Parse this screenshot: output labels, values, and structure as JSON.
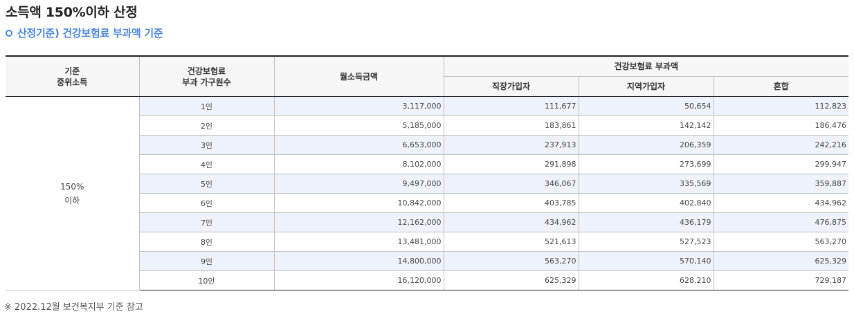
{
  "title": "소득액 150%이하 산정",
  "subtitle": "산정기준) 건강보험료 부과액 기준",
  "table": {
    "headers": {
      "median_income_line1": "기준",
      "median_income_line2": "중위소득",
      "household_line1": "건강보험료",
      "household_line2": "부과 가구원수",
      "monthly_income": "월소득금액",
      "premium_group": "건강보험료 부과액",
      "employee": "직장가입자",
      "regional": "지역가입자",
      "mixed": "혼합"
    },
    "group_label_line1": "150%",
    "group_label_line2": "이하",
    "rows": [
      {
        "household": "1인",
        "income": "3,117,000",
        "employee": "111,677",
        "regional": "50,654",
        "mixed": "112,823"
      },
      {
        "household": "2인",
        "income": "5,185,000",
        "employee": "183,861",
        "regional": "142,142",
        "mixed": "186,476"
      },
      {
        "household": "3인",
        "income": "6,653,000",
        "employee": "237,913",
        "regional": "206,359",
        "mixed": "242,216"
      },
      {
        "household": "4인",
        "income": "8,102,000",
        "employee": "291,898",
        "regional": "273,699",
        "mixed": "299,947"
      },
      {
        "household": "5인",
        "income": "9,497,000",
        "employee": "346,067",
        "regional": "335,569",
        "mixed": "359,887"
      },
      {
        "household": "6인",
        "income": "10,842,000",
        "employee": "403,785",
        "regional": "402,840",
        "mixed": "434,962"
      },
      {
        "household": "7인",
        "income": "12,162,000",
        "employee": "434,962",
        "regional": "436,179",
        "mixed": "476,875"
      },
      {
        "household": "8인",
        "income": "13,481,000",
        "employee": "521,613",
        "regional": "527,523",
        "mixed": "563,270"
      },
      {
        "household": "9인",
        "income": "14,800,000",
        "employee": "563,270",
        "regional": "570,140",
        "mixed": "625,329"
      },
      {
        "household": "10인",
        "income": "16,120,000",
        "employee": "625,329",
        "regional": "628,210",
        "mixed": "729,187"
      }
    ]
  },
  "note": "※ 2022.12월 보건복지부 기준 참고",
  "colors": {
    "accent": "#4a86d8",
    "row_shade": "#eef3fb",
    "header_bg": "#f6f6f6"
  }
}
